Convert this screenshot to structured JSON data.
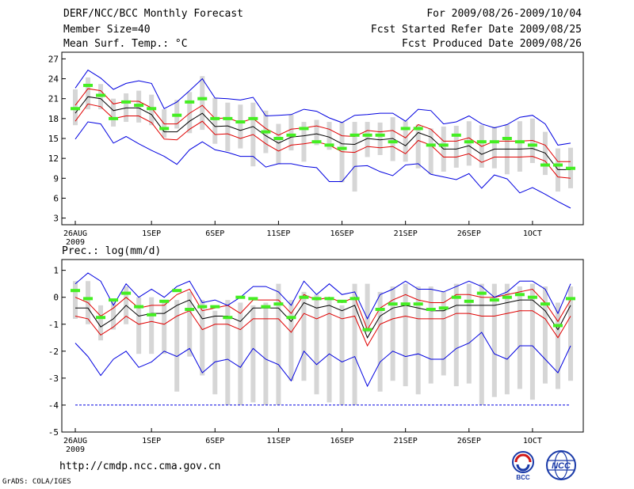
{
  "header": {
    "title": "DERF/NCC/BCC Monthly Forecast",
    "member_size": "Member Size=40",
    "variable": "Mean Surf. Temp.: °C",
    "period": "For 2009/08/26-2009/10/04",
    "fcst_started": "Fcst Started Refer Date 2009/08/25",
    "fcst_produced": "Fcst Produced Date 2009/08/26"
  },
  "footer": {
    "url": "http://cmdp.ncc.cma.gov.cn",
    "grads": "GrADS: COLA/IGES",
    "logo_bcc": "BCC",
    "logo_ncc": "NCC"
  },
  "colors": {
    "mean": "#000000",
    "spread": "#e00000",
    "extreme": "#0000e0",
    "obs": "#44ee22",
    "box": "#d6d6d6"
  },
  "chart_data": [
    {
      "type": "line",
      "name": "temperature",
      "title": "",
      "ylabel": "Mean Surf. Temp.: °C",
      "ylim": [
        2,
        28
      ],
      "yticks": [
        3,
        6,
        9,
        12,
        15,
        18,
        21,
        24,
        27
      ],
      "xlim": [
        0,
        39
      ],
      "xticks": [
        {
          "x": 0,
          "label": "26AUG",
          "sub": "2009"
        },
        {
          "x": 6,
          "label": "1SEP"
        },
        {
          "x": 11,
          "label": "6SEP"
        },
        {
          "x": 16,
          "label": "11SEP"
        },
        {
          "x": 21,
          "label": "16SEP"
        },
        {
          "x": 26,
          "label": "21SEP"
        },
        {
          "x": 31,
          "label": "26SEP"
        },
        {
          "x": 36,
          "label": "1OCT"
        }
      ],
      "series": [
        {
          "name": "mean",
          "values": [
            18.8,
            21.3,
            21.0,
            19.2,
            19.6,
            19.6,
            18.6,
            16.0,
            16.0,
            17.6,
            18.8,
            16.8,
            16.9,
            16.2,
            16.8,
            15.4,
            14.3,
            15.2,
            15.4,
            15.7,
            15.2,
            14.2,
            14.1,
            15.0,
            14.8,
            15.0,
            13.9,
            15.9,
            15.2,
            13.4,
            13.4,
            13.9,
            12.6,
            13.4,
            13.4,
            13.4,
            13.5,
            12.8,
            10.3,
            10.3
          ]
        },
        {
          "name": "mean+spread",
          "values": [
            20.0,
            22.5,
            22.2,
            20.2,
            20.6,
            20.6,
            19.6,
            17.2,
            17.2,
            18.8,
            20.0,
            18.0,
            18.1,
            17.4,
            18.0,
            16.5,
            15.5,
            16.4,
            16.6,
            16.9,
            16.4,
            15.4,
            15.3,
            16.2,
            16.0,
            16.2,
            15.1,
            17.1,
            16.4,
            14.6,
            14.6,
            15.1,
            13.8,
            14.6,
            14.6,
            14.6,
            14.7,
            14.0,
            11.5,
            11.5
          ]
        },
        {
          "name": "mean-spread",
          "values": [
            17.6,
            20.2,
            19.8,
            18.0,
            18.4,
            18.4,
            17.4,
            14.9,
            14.8,
            16.4,
            17.6,
            15.6,
            15.7,
            15.0,
            15.6,
            14.2,
            13.1,
            14.0,
            14.2,
            14.5,
            14.0,
            13.0,
            12.9,
            13.8,
            13.6,
            13.8,
            12.7,
            14.7,
            14.0,
            12.2,
            12.2,
            12.7,
            11.4,
            12.2,
            12.2,
            12.2,
            12.3,
            11.6,
            9.2,
            9.0
          ]
        },
        {
          "name": "max",
          "values": [
            22.6,
            25.3,
            24.1,
            22.4,
            23.3,
            23.7,
            23.3,
            19.5,
            20.5,
            22.2,
            24.0,
            21.1,
            21.0,
            20.8,
            21.2,
            18.4,
            18.5,
            18.6,
            19.4,
            19.1,
            18.1,
            17.4,
            18.5,
            18.6,
            18.8,
            18.8,
            17.6,
            19.4,
            19.2,
            17.2,
            17.5,
            18.4,
            17.2,
            16.6,
            17.1,
            18.2,
            18.5,
            17.2,
            14.0,
            14.3
          ]
        },
        {
          "name": "min",
          "values": [
            14.9,
            17.5,
            17.2,
            14.3,
            15.3,
            14.2,
            13.2,
            12.3,
            11.1,
            13.3,
            14.5,
            13.3,
            12.9,
            12.3,
            12.3,
            10.7,
            11.2,
            11.2,
            10.8,
            10.6,
            8.5,
            8.5,
            10.8,
            10.9,
            10.0,
            9.4,
            11.0,
            11.2,
            9.6,
            9.2,
            8.8,
            9.7,
            7.5,
            9.5,
            8.9,
            6.8,
            7.6,
            6.6,
            5.5,
            4.5
          ]
        },
        {
          "name": "observed",
          "values": [
            19.5,
            23.0,
            21.5,
            18.0,
            20.5,
            20.0,
            19.5,
            16.5,
            18.5,
            20.5,
            21.0,
            18.0,
            18.0,
            17.5,
            18.0,
            16.0,
            15.0,
            15.5,
            16.5,
            14.5,
            14.0,
            13.5,
            15.5,
            15.5,
            15.5,
            14.5,
            16.5,
            16.5,
            14.0,
            14.0,
            15.5,
            14.5,
            14.5,
            14.5,
            15.0,
            14.5,
            14.0,
            11.0,
            11.0,
            10.5
          ]
        }
      ],
      "boxes": [
        [
          17,
          22.4
        ],
        [
          19.4,
          24.2
        ],
        [
          19.4,
          23.2
        ],
        [
          16.8,
          21.0
        ],
        [
          17.5,
          21.8
        ],
        [
          17.4,
          22.2
        ],
        [
          17.0,
          21.6
        ],
        [
          15.1,
          19.4
        ],
        [
          16.5,
          20.8
        ],
        [
          15.8,
          22.0
        ],
        [
          16.3,
          24.4
        ],
        [
          14.2,
          21.1
        ],
        [
          13.1,
          20.4
        ],
        [
          13.5,
          20.1
        ],
        [
          10.8,
          20.4
        ],
        [
          12.8,
          19.2
        ],
        [
          11.1,
          17.2
        ],
        [
          13.2,
          18.6
        ],
        [
          11.5,
          17.5
        ],
        [
          14.0,
          17.8
        ],
        [
          13.3,
          17.5
        ],
        [
          8.4,
          17.5
        ],
        [
          7.0,
          17.5
        ],
        [
          12.2,
          17.5
        ],
        [
          12.5,
          17.4
        ],
        [
          11.6,
          18.2
        ],
        [
          11.5,
          17.6
        ],
        [
          10.5,
          17.1
        ],
        [
          9.6,
          16.5
        ],
        [
          10.0,
          16.8
        ],
        [
          10.6,
          16.9
        ],
        [
          10.9,
          17.6
        ],
        [
          10.6,
          17.0
        ],
        [
          10.5,
          16.8
        ],
        [
          9.6,
          17.1
        ],
        [
          10.0,
          17.6
        ],
        [
          11.3,
          18.0
        ],
        [
          9.5,
          16.0
        ],
        [
          7.0,
          13.5
        ],
        [
          7.5,
          13.6
        ]
      ]
    },
    {
      "type": "line",
      "name": "precipitation",
      "title": "Prec.: log(mm/d)",
      "ylabel": "Prec.: log(mm/d)",
      "ylim": [
        -5,
        1.4
      ],
      "yticks": [
        -5,
        -4,
        -3,
        -2,
        -1,
        0,
        1
      ],
      "xlim": [
        0,
        39
      ],
      "xticks": [
        {
          "x": 0,
          "label": "26AUG",
          "sub": "2009"
        },
        {
          "x": 6,
          "label": "1SEP"
        },
        {
          "x": 11,
          "label": "6SEP"
        },
        {
          "x": 16,
          "label": "11SEP"
        },
        {
          "x": 21,
          "label": "16SEP"
        },
        {
          "x": 26,
          "label": "21SEP"
        },
        {
          "x": 31,
          "label": "26SEP"
        },
        {
          "x": 36,
          "label": "1OCT"
        }
      ],
      "series": [
        {
          "name": "mean",
          "values": [
            -0.4,
            -0.4,
            -1.1,
            -0.8,
            -0.3,
            -0.7,
            -0.6,
            -0.6,
            -0.3,
            -0.1,
            -0.8,
            -0.7,
            -0.7,
            -0.9,
            -0.4,
            -0.4,
            -0.4,
            -0.9,
            -0.2,
            -0.4,
            -0.3,
            -0.5,
            -0.3,
            -1.5,
            -0.7,
            -0.4,
            -0.3,
            -0.4,
            -0.5,
            -0.5,
            -0.3,
            -0.3,
            -0.3,
            -0.3,
            -0.2,
            -0.1,
            -0.1,
            -0.5,
            -1.2,
            -0.3
          ]
        },
        {
          "name": "mean+spread",
          "values": [
            0.0,
            -0.2,
            -0.7,
            -0.4,
            0.0,
            -0.4,
            -0.3,
            -0.3,
            0.1,
            0.3,
            -0.5,
            -0.4,
            -0.3,
            -0.6,
            -0.1,
            -0.1,
            -0.1,
            -0.6,
            0.1,
            -0.1,
            0.0,
            -0.2,
            0.0,
            -1.2,
            -0.4,
            -0.1,
            0.1,
            -0.1,
            -0.2,
            -0.2,
            0.1,
            0.1,
            0.0,
            0.0,
            0.1,
            0.2,
            0.3,
            -0.2,
            -0.9,
            -0.1
          ]
        },
        {
          "name": "mean-spread",
          "values": [
            -0.7,
            -0.8,
            -1.4,
            -1.1,
            -0.7,
            -1.0,
            -0.9,
            -1.0,
            -0.7,
            -0.5,
            -1.2,
            -1.0,
            -1.0,
            -1.2,
            -0.8,
            -0.8,
            -0.8,
            -1.3,
            -0.6,
            -0.8,
            -0.6,
            -0.8,
            -0.7,
            -1.8,
            -1.0,
            -0.8,
            -0.7,
            -0.8,
            -0.8,
            -0.8,
            -0.6,
            -0.6,
            -0.7,
            -0.7,
            -0.6,
            -0.5,
            -0.5,
            -0.8,
            -1.5,
            -0.7
          ]
        },
        {
          "name": "max",
          "values": [
            0.5,
            0.9,
            0.6,
            -0.3,
            0.5,
            0.0,
            0.3,
            0.0,
            0.4,
            0.6,
            -0.2,
            -0.1,
            -0.3,
            0.0,
            0.4,
            0.4,
            0.2,
            -0.3,
            0.6,
            0.1,
            0.5,
            0.1,
            0.2,
            -0.8,
            0.1,
            0.3,
            0.6,
            0.3,
            0.3,
            0.2,
            0.4,
            0.6,
            0.4,
            0.0,
            0.2,
            0.6,
            0.6,
            0.3,
            -0.6,
            0.5
          ]
        },
        {
          "name": "min",
          "values": [
            -1.7,
            -2.2,
            -2.9,
            -2.3,
            -2.0,
            -2.6,
            -2.4,
            -2.0,
            -2.2,
            -1.9,
            -2.8,
            -2.4,
            -2.3,
            -2.6,
            -1.9,
            -2.3,
            -2.5,
            -3.1,
            -2.0,
            -2.5,
            -2.1,
            -2.4,
            -2.2,
            -3.3,
            -2.4,
            -2.0,
            -2.2,
            -2.1,
            -2.3,
            -2.3,
            -1.9,
            -1.7,
            -1.3,
            -2.1,
            -2.3,
            -1.8,
            -1.8,
            -2.3,
            -2.8,
            -1.8
          ]
        },
        {
          "name": "observed",
          "values": [
            0.25,
            -0.05,
            -0.75,
            -0.1,
            0.15,
            -0.35,
            -0.65,
            -0.15,
            0.25,
            -0.45,
            -0.35,
            -0.35,
            -0.75,
            0.0,
            -0.05,
            -0.35,
            -0.25,
            -0.75,
            0.0,
            -0.05,
            -0.05,
            -0.15,
            -0.05,
            -1.2,
            -0.45,
            -0.25,
            -0.25,
            -0.25,
            -0.45,
            -0.4,
            0.0,
            -0.15,
            0.15,
            -0.1,
            0.0,
            0.1,
            0.0,
            -0.25,
            -1.05,
            -0.05
          ]
        },
        {
          "name": "lower_bound",
          "values": [
            -4,
            -4,
            -4,
            -4,
            -4,
            -4,
            -4,
            -4,
            -4,
            -4,
            -4,
            -4,
            -4,
            -4,
            -4,
            -4,
            -4,
            -4,
            -4,
            -4,
            -4,
            -4,
            -4,
            -4,
            -4,
            -4,
            -4,
            -4,
            -4,
            -4,
            -4,
            -4,
            -4,
            -4,
            -4,
            -4,
            -4,
            -4,
            -4,
            -4
          ]
        }
      ],
      "boxes": [
        [
          -0.8,
          0.6
        ],
        [
          -1.0,
          0.6
        ],
        [
          -1.6,
          -0.3
        ],
        [
          -1.2,
          -0.1
        ],
        [
          -1.0,
          0.4
        ],
        [
          -2.1,
          0.0
        ],
        [
          -2.1,
          0.0
        ],
        [
          -2.1,
          -0.2
        ],
        [
          -3.5,
          -0.1
        ],
        [
          -2.2,
          0.2
        ],
        [
          -2.9,
          -0.1
        ],
        [
          -3.6,
          -0.5
        ],
        [
          -4.0,
          -0.1
        ],
        [
          -4.0,
          -0.2
        ],
        [
          -3.9,
          -0.3
        ],
        [
          -4.0,
          -0.2
        ],
        [
          -4.0,
          0.5
        ],
        [
          -3.1,
          -0.1
        ],
        [
          -3.1,
          0.2
        ],
        [
          -3.6,
          0.1
        ],
        [
          -3.9,
          0.0
        ],
        [
          -4.0,
          -0.3
        ],
        [
          -4.0,
          0.5
        ],
        [
          -1.3,
          0.5
        ],
        [
          -3.5,
          0.2
        ],
        [
          -3.1,
          0.4
        ],
        [
          -3.3,
          0.5
        ],
        [
          -3.6,
          0.4
        ],
        [
          -3.2,
          0.4
        ],
        [
          -2.9,
          0.2
        ],
        [
          -3.3,
          0.5
        ],
        [
          -3.2,
          0.5
        ],
        [
          -4.0,
          0.5
        ],
        [
          -3.7,
          0.5
        ],
        [
          -3.6,
          0.5
        ],
        [
          -3.4,
          0.4
        ],
        [
          -3.8,
          0.5
        ],
        [
          -3.2,
          0.4
        ],
        [
          -3.4,
          -0.2
        ],
        [
          -3.1,
          0.4
        ]
      ]
    }
  ]
}
